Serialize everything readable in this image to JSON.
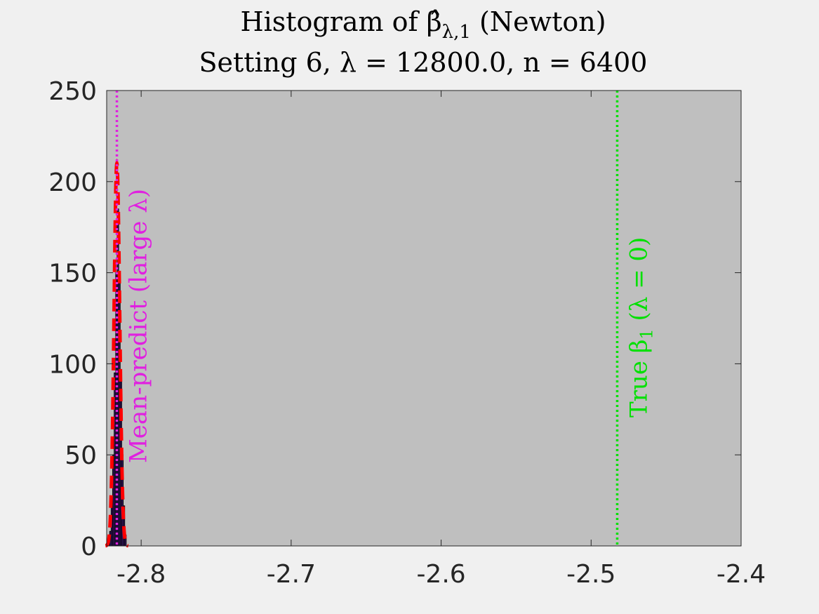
{
  "chart_data": {
    "type": "bar",
    "title_line1": "Histogram of β̂",
    "title_sub": "λ,1",
    "title_line1_tail": " (Newton)",
    "title_line2": "Setting 6, λ = 12800.0, n = 6400",
    "xlabel": "",
    "ylabel": "",
    "xlim": [
      -2.823,
      -2.4
    ],
    "ylim": [
      0,
      250
    ],
    "xticks": [
      -2.8,
      -2.7,
      -2.6,
      -2.5,
      -2.4
    ],
    "xtick_labels": [
      "-2.8",
      "-2.7",
      "-2.6",
      "-2.5",
      "-2.4"
    ],
    "yticks": [
      0,
      50,
      100,
      150,
      200,
      250
    ],
    "ytick_labels": [
      "0",
      "50",
      "100",
      "150",
      "200",
      "250"
    ],
    "grid": false,
    "background": "#bfbfbf",
    "bins": {
      "centers": [
        -2.8215,
        -2.8205,
        -2.8195,
        -2.8185,
        -2.8175,
        -2.8165,
        -2.8155,
        -2.8145,
        -2.8135,
        -2.8125,
        -2.8115,
        -2.8105
      ],
      "counts": [
        2,
        8,
        22,
        50,
        95,
        150,
        185,
        150,
        95,
        50,
        22,
        6
      ],
      "width": 0.001,
      "color": "#3d1a6e",
      "edge": "#000000"
    },
    "density_curve": {
      "mean": -2.8162,
      "sd": 0.0019,
      "area": 1000,
      "color": "#ff0000",
      "style": "dashed"
    },
    "vlines": [
      {
        "x": -2.8162,
        "color": "#e020e0",
        "style": "dotted",
        "label": "Mean-predict (large λ)"
      },
      {
        "x": -2.4826,
        "color": "#00e000",
        "style": "dotted",
        "label_prefix": "True β",
        "label_sub": "1",
        "label_suffix": " (λ = 0)"
      }
    ]
  }
}
